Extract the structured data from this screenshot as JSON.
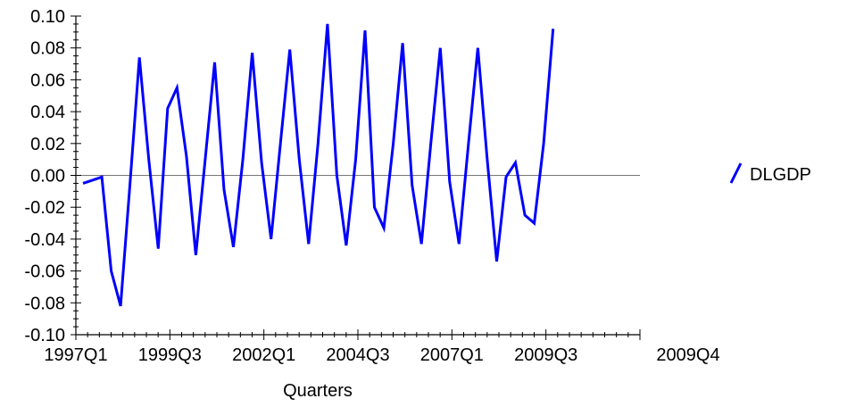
{
  "chart_data": {
    "type": "line",
    "xlabel": "Quarters",
    "ylabel": "",
    "ylim": [
      -0.1,
      0.1
    ],
    "yticks": [
      "0.10",
      "0.08",
      "0.06",
      "0.04",
      "0.02",
      "0.00",
      "-0.02",
      "-0.04",
      "-0.06",
      "-0.08",
      "-0.10"
    ],
    "xtick_labels": [
      "1997Q1",
      "1999Q3",
      "2002Q1",
      "2004Q3",
      "2007Q1",
      "2009Q3"
    ],
    "x_end_label": "2009Q4",
    "zero_line": true,
    "legend": {
      "placement": "right"
    },
    "series": [
      {
        "name": "DLGDP",
        "color": "#0000ff",
        "values": [
          -0.005,
          -0.003,
          -0.001,
          -0.06,
          -0.082,
          -0.005,
          0.074,
          0.01,
          -0.046,
          0.042,
          0.055,
          0.012,
          -0.05,
          0.01,
          0.071,
          -0.009,
          -0.045,
          0.01,
          0.077,
          0.008,
          -0.04,
          0.02,
          0.079,
          0.01,
          -0.043,
          0.02,
          0.095,
          0.0,
          -0.044,
          0.01,
          0.091,
          -0.02,
          -0.033,
          0.02,
          0.083,
          -0.006,
          -0.043,
          0.02,
          0.08,
          -0.004,
          -0.043,
          0.02,
          0.08,
          0.01,
          -0.054,
          -0.001,
          0.008,
          -0.025,
          -0.03,
          0.02,
          0.092
        ]
      }
    ]
  }
}
